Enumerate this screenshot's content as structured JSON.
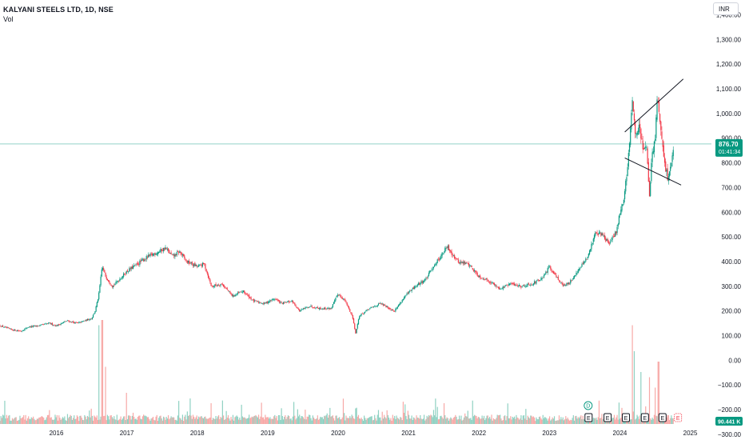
{
  "header": {
    "title": "KALYANI STEELS LTD, 1D, NSE",
    "subtitle": "Vol"
  },
  "currency_label": "INR",
  "price_badge": {
    "price": "876.70",
    "timer": "01:41:34",
    "color": "#089981"
  },
  "volume_badge": {
    "value": "90.441 K",
    "color": "#089981"
  },
  "event_markers": [
    {
      "letter": "D",
      "date": 2023.55,
      "style": "dividend",
      "color": "#089981"
    },
    {
      "letter": "E",
      "date": 2023.55,
      "style": "earnings",
      "color": "#131722"
    },
    {
      "letter": "E",
      "date": 2023.82,
      "style": "earnings",
      "color": "#131722"
    },
    {
      "letter": "E",
      "date": 2024.08,
      "style": "earnings",
      "color": "#131722"
    },
    {
      "letter": "E",
      "date": 2024.35,
      "style": "earnings",
      "color": "#131722"
    },
    {
      "letter": "E",
      "date": 2024.6,
      "style": "earnings",
      "color": "#131722"
    },
    {
      "letter": "E",
      "date": 2024.82,
      "style": "upcoming",
      "color": "#f23645"
    }
  ],
  "chart_data": {
    "type": "line",
    "title": "KALYANI STEELS LTD, 1D, NSE",
    "y_axis": {
      "unit": "INR",
      "range": [
        -310,
        1460
      ],
      "ticks": [
        1400,
        1300,
        1200,
        1100,
        1000,
        900,
        800,
        700,
        600,
        500,
        400,
        300,
        200,
        100,
        0,
        -100,
        -200,
        -300
      ],
      "tick_labels": [
        "1,400.00",
        "1,300.00",
        "1,200.00",
        "1,100.00",
        "1,000.00",
        "900.00",
        "800.00",
        "700.00",
        "600.00",
        "500.00",
        "400.00",
        "300.00",
        "200.00",
        "100.00",
        "0.00",
        "−100.00",
        "−200.00",
        "−300.00"
      ]
    },
    "x_axis": {
      "range": [
        2015.2,
        2025.3
      ],
      "ticks": [
        2016,
        2017,
        2018,
        2019,
        2020,
        2021,
        2022,
        2023,
        2024,
        2025
      ],
      "tick_labels": [
        "2016",
        "2017",
        "2018",
        "2019",
        "2020",
        "2021",
        "2022",
        "2023",
        "2024",
        "2025"
      ]
    },
    "current_price": 876.7,
    "colors": {
      "up": "#089981",
      "down": "#f23645",
      "up_volume": "#8fd1c2",
      "down_volume": "#f7a9a7",
      "price_line": "#089981",
      "trendline": "#131722"
    },
    "price_series": {
      "name": "Close",
      "points": [
        [
          2015.2,
          140
        ],
        [
          2015.35,
          125
        ],
        [
          2015.5,
          118
        ],
        [
          2015.6,
          135
        ],
        [
          2015.75,
          140
        ],
        [
          2015.9,
          150
        ],
        [
          2016.0,
          140
        ],
        [
          2016.15,
          160
        ],
        [
          2016.3,
          150
        ],
        [
          2016.5,
          170
        ],
        [
          2016.55,
          200
        ],
        [
          2016.6,
          260
        ],
        [
          2016.65,
          380
        ],
        [
          2016.7,
          340
        ],
        [
          2016.8,
          300
        ],
        [
          2016.9,
          330
        ],
        [
          2017.0,
          360
        ],
        [
          2017.15,
          390
        ],
        [
          2017.3,
          420
        ],
        [
          2017.45,
          440
        ],
        [
          2017.55,
          455
        ],
        [
          2017.65,
          420
        ],
        [
          2017.75,
          440
        ],
        [
          2017.85,
          400
        ],
        [
          2018.0,
          380
        ],
        [
          2018.1,
          390
        ],
        [
          2018.2,
          300
        ],
        [
          2018.35,
          310
        ],
        [
          2018.5,
          260
        ],
        [
          2018.65,
          280
        ],
        [
          2018.8,
          240
        ],
        [
          2018.95,
          230
        ],
        [
          2019.1,
          250
        ],
        [
          2019.2,
          230
        ],
        [
          2019.35,
          240
        ],
        [
          2019.45,
          200
        ],
        [
          2019.6,
          220
        ],
        [
          2019.75,
          210
        ],
        [
          2019.9,
          210
        ],
        [
          2020.0,
          270
        ],
        [
          2020.1,
          240
        ],
        [
          2020.2,
          180
        ],
        [
          2020.25,
          110
        ],
        [
          2020.3,
          180
        ],
        [
          2020.45,
          210
        ],
        [
          2020.6,
          230
        ],
        [
          2020.8,
          200
        ],
        [
          2020.95,
          260
        ],
        [
          2021.1,
          300
        ],
        [
          2021.25,
          330
        ],
        [
          2021.35,
          380
        ],
        [
          2021.45,
          420
        ],
        [
          2021.55,
          460
        ],
        [
          2021.7,
          400
        ],
        [
          2021.85,
          390
        ],
        [
          2022.0,
          340
        ],
        [
          2022.15,
          320
        ],
        [
          2022.3,
          290
        ],
        [
          2022.45,
          310
        ],
        [
          2022.6,
          300
        ],
        [
          2022.75,
          310
        ],
        [
          2022.9,
          330
        ],
        [
          2023.0,
          380
        ],
        [
          2023.1,
          340
        ],
        [
          2023.2,
          300
        ],
        [
          2023.3,
          320
        ],
        [
          2023.45,
          380
        ],
        [
          2023.55,
          420
        ],
        [
          2023.65,
          520
        ],
        [
          2023.75,
          510
        ],
        [
          2023.85,
          470
        ],
        [
          2023.95,
          520
        ],
        [
          2024.0,
          600
        ],
        [
          2024.05,
          640
        ],
        [
          2024.1,
          760
        ],
        [
          2024.15,
          930
        ],
        [
          2024.18,
          1070
        ],
        [
          2024.22,
          900
        ],
        [
          2024.28,
          950
        ],
        [
          2024.33,
          850
        ],
        [
          2024.38,
          860
        ],
        [
          2024.42,
          650
        ],
        [
          2024.45,
          820
        ],
        [
          2024.5,
          900
        ],
        [
          2024.53,
          1060
        ],
        [
          2024.58,
          940
        ],
        [
          2024.63,
          800
        ],
        [
          2024.68,
          740
        ],
        [
          2024.73,
          800
        ],
        [
          2024.77,
          876.7
        ]
      ]
    },
    "trendlines": [
      {
        "from": [
          2024.07,
          925
        ],
        "to": [
          2024.9,
          1140
        ]
      },
      {
        "from": [
          2024.07,
          820
        ],
        "to": [
          2024.87,
          710
        ]
      }
    ],
    "volume_series": {
      "name": "Vol",
      "note": "relative bar heights",
      "spikes": [
        [
          2016.6,
          0.95
        ],
        [
          2016.65,
          1.0
        ],
        [
          2016.7,
          0.55
        ],
        [
          2017.0,
          0.3
        ],
        [
          2018.2,
          0.2
        ],
        [
          2020.25,
          0.15
        ],
        [
          2021.5,
          0.2
        ],
        [
          2024.2,
          0.7
        ],
        [
          2024.18,
          0.95
        ],
        [
          2024.3,
          0.5
        ],
        [
          2024.42,
          0.45
        ],
        [
          2024.55,
          0.6
        ],
        [
          2024.5,
          0.35
        ]
      ]
    },
    "grid": false,
    "legend": "none"
  }
}
